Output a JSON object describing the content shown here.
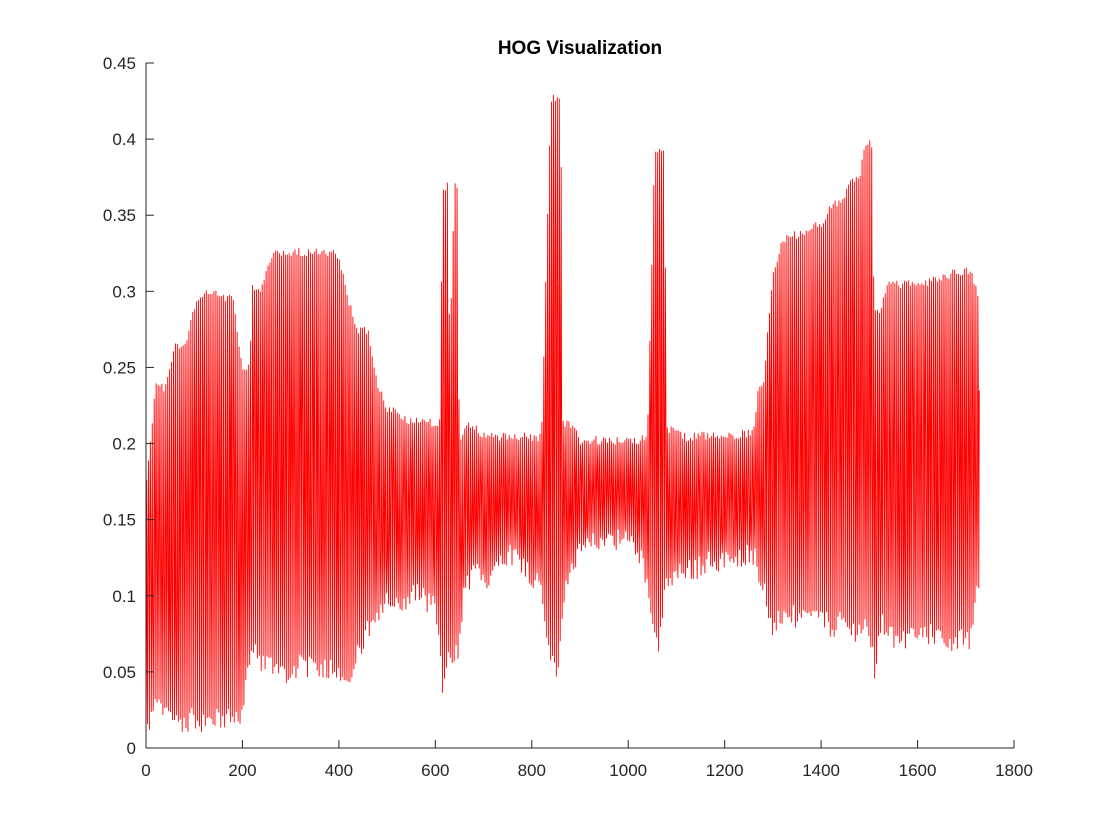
{
  "chart_data": {
    "type": "line",
    "title": "HOG Visualization",
    "xlabel": "",
    "ylabel": "",
    "xlim": [
      0,
      1800
    ],
    "ylim": [
      0,
      0.45
    ],
    "grid": false,
    "xticks": [
      0,
      200,
      400,
      600,
      800,
      1000,
      1200,
      1400,
      1600,
      1800
    ],
    "xtick_labels": [
      "0",
      "200",
      "400",
      "600",
      "800",
      "1000",
      "1200",
      "1400",
      "1600",
      "1800"
    ],
    "yticks": [
      0,
      0.05,
      0.1,
      0.15,
      0.2,
      0.25,
      0.3,
      0.35,
      0.4,
      0.45
    ],
    "ytick_labels": [
      "0",
      "0.05",
      "0.1",
      "0.15",
      "0.2",
      "0.25",
      "0.3",
      "0.35",
      "0.4",
      "0.45"
    ],
    "series": [
      {
        "color": "#ff0000",
        "point_count": 1728,
        "x_start": 1,
        "peak_envelope": {
          "x": [
            1,
            20,
            40,
            60,
            80,
            100,
            120,
            140,
            160,
            180,
            200,
            215,
            220,
            240,
            260,
            280,
            300,
            320,
            340,
            360,
            380,
            400,
            420,
            440,
            460,
            480,
            500,
            520,
            540,
            560,
            580,
            600,
            610,
            615,
            625,
            630,
            640,
            645,
            650,
            660,
            680,
            700,
            720,
            740,
            760,
            780,
            800,
            820,
            840,
            845,
            850,
            855,
            860,
            865,
            870,
            880,
            900,
            920,
            940,
            960,
            980,
            1000,
            1020,
            1040,
            1055,
            1060,
            1065,
            1070,
            1075,
            1080,
            1090,
            1100,
            1120,
            1140,
            1160,
            1180,
            1200,
            1220,
            1240,
            1260,
            1270,
            1280,
            1300,
            1320,
            1340,
            1360,
            1380,
            1400,
            1420,
            1440,
            1460,
            1480,
            1490,
            1500,
            1505,
            1510,
            1520,
            1540,
            1560,
            1580,
            1600,
            1620,
            1640,
            1660,
            1680,
            1700,
            1710,
            1728
          ],
          "y": [
            0.18,
            0.24,
            0.24,
            0.267,
            0.267,
            0.291,
            0.302,
            0.302,
            0.298,
            0.298,
            0.252,
            0.252,
            0.305,
            0.305,
            0.326,
            0.328,
            0.329,
            0.329,
            0.328,
            0.328,
            0.327,
            0.327,
            0.296,
            0.278,
            0.277,
            0.242,
            0.224,
            0.224,
            0.218,
            0.218,
            0.217,
            0.217,
            0.217,
            0.372,
            0.372,
            0.265,
            0.372,
            0.372,
            0.2,
            0.215,
            0.215,
            0.207,
            0.207,
            0.207,
            0.206,
            0.207,
            0.207,
            0.207,
            0.43,
            0.43,
            0.43,
            0.43,
            0.43,
            0.215,
            0.215,
            0.215,
            0.205,
            0.205,
            0.205,
            0.204,
            0.204,
            0.205,
            0.205,
            0.207,
            0.395,
            0.395,
            0.395,
            0.395,
            0.394,
            0.212,
            0.212,
            0.212,
            0.207,
            0.208,
            0.208,
            0.208,
            0.208,
            0.208,
            0.209,
            0.209,
            0.24,
            0.24,
            0.317,
            0.335,
            0.34,
            0.34,
            0.346,
            0.346,
            0.36,
            0.36,
            0.376,
            0.376,
            0.4,
            0.4,
            0.4,
            0.29,
            0.29,
            0.307,
            0.307,
            0.308,
            0.309,
            0.309,
            0.31,
            0.313,
            0.315,
            0.317,
            0.317,
            0.296
          ]
        },
        "trough_envelope": {
          "x": [
            1,
            20,
            40,
            60,
            80,
            100,
            120,
            140,
            160,
            180,
            200,
            220,
            240,
            260,
            280,
            300,
            320,
            340,
            360,
            380,
            400,
            420,
            440,
            460,
            480,
            500,
            520,
            540,
            560,
            580,
            600,
            610,
            615,
            625,
            635,
            650,
            660,
            680,
            700,
            720,
            740,
            760,
            780,
            800,
            820,
            835,
            845,
            855,
            865,
            870,
            880,
            900,
            920,
            940,
            960,
            980,
            1000,
            1020,
            1040,
            1055,
            1062,
            1070,
            1080,
            1090,
            1100,
            1120,
            1140,
            1160,
            1180,
            1200,
            1220,
            1240,
            1260,
            1280,
            1300,
            1320,
            1340,
            1360,
            1380,
            1400,
            1420,
            1440,
            1460,
            1480,
            1500,
            1512,
            1520,
            1540,
            1560,
            1580,
            1600,
            1620,
            1640,
            1660,
            1680,
            1700,
            1710,
            1720,
            1728
          ],
          "y": [
            0.005,
            0.02,
            0.015,
            0.012,
            0.01,
            0.012,
            0.01,
            0.011,
            0.012,
            0.012,
            0.015,
            0.06,
            0.05,
            0.047,
            0.045,
            0.04,
            0.05,
            0.045,
            0.045,
            0.046,
            0.045,
            0.035,
            0.055,
            0.07,
            0.075,
            0.09,
            0.085,
            0.09,
            0.095,
            0.09,
            0.085,
            0.055,
            0.03,
            0.05,
            0.047,
            0.06,
            0.095,
            0.11,
            0.1,
            0.11,
            0.12,
            0.12,
            0.115,
            0.105,
            0.1,
            0.055,
            0.045,
            0.043,
            0.09,
            0.1,
            0.11,
            0.12,
            0.125,
            0.13,
            0.13,
            0.13,
            0.128,
            0.125,
            0.1,
            0.075,
            0.052,
            0.08,
            0.1,
            0.1,
            0.105,
            0.11,
            0.11,
            0.115,
            0.115,
            0.115,
            0.115,
            0.12,
            0.12,
            0.1,
            0.07,
            0.08,
            0.08,
            0.075,
            0.08,
            0.078,
            0.072,
            0.075,
            0.07,
            0.07,
            0.07,
            0.04,
            0.075,
            0.07,
            0.06,
            0.065,
            0.07,
            0.068,
            0.065,
            0.065,
            0.062,
            0.065,
            0.062,
            0.09,
            0.105
          ]
        }
      }
    ]
  }
}
